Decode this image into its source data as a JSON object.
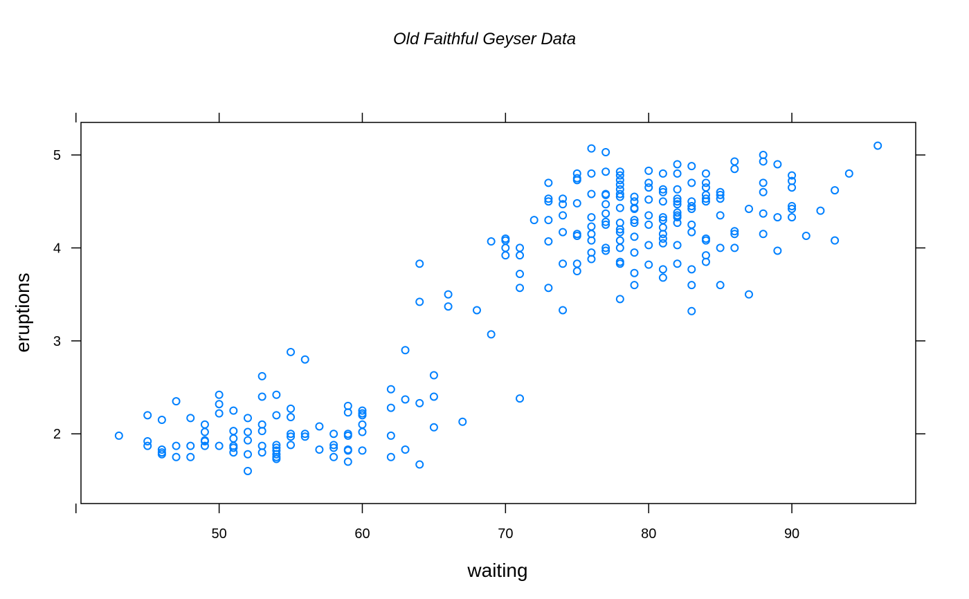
{
  "chart_data": {
    "type": "scatter",
    "title": "Old Faithful Geyser Data",
    "xlabel": "waiting",
    "ylabel": "eruptions",
    "xlim": [
      40.35,
      98.65
    ],
    "ylim": [
      1.25,
      5.35
    ],
    "xticks": [
      50,
      60,
      70,
      80,
      90
    ],
    "yticks": [
      2,
      3,
      4,
      5
    ],
    "grid": false,
    "color": "#0080ff",
    "points": [
      [
        43,
        1.98
      ],
      [
        45,
        2.2
      ],
      [
        45,
        1.92
      ],
      [
        45,
        1.87
      ],
      [
        46,
        2.15
      ],
      [
        46,
        1.83
      ],
      [
        46,
        1.8
      ],
      [
        46,
        1.78
      ],
      [
        47,
        2.35
      ],
      [
        47,
        1.87
      ],
      [
        47,
        1.75
      ],
      [
        48,
        2.17
      ],
      [
        48,
        1.87
      ],
      [
        48,
        1.75
      ],
      [
        49,
        2.1
      ],
      [
        49,
        2.02
      ],
      [
        49,
        1.93
      ],
      [
        49,
        1.92
      ],
      [
        49,
        1.87
      ],
      [
        50,
        2.42
      ],
      [
        50,
        2.32
      ],
      [
        50,
        2.22
      ],
      [
        50,
        1.87
      ],
      [
        51,
        2.25
      ],
      [
        51,
        2.03
      ],
      [
        51,
        1.95
      ],
      [
        51,
        1.87
      ],
      [
        51,
        1.85
      ],
      [
        51,
        1.8
      ],
      [
        52,
        2.17
      ],
      [
        52,
        2.02
      ],
      [
        52,
        1.93
      ],
      [
        52,
        1.78
      ],
      [
        52,
        1.6
      ],
      [
        53,
        2.62
      ],
      [
        53,
        2.4
      ],
      [
        53,
        2.1
      ],
      [
        53,
        2.03
      ],
      [
        53,
        1.87
      ],
      [
        53,
        1.8
      ],
      [
        54,
        2.42
      ],
      [
        54,
        2.2
      ],
      [
        54,
        1.88
      ],
      [
        54,
        1.85
      ],
      [
        54,
        1.82
      ],
      [
        54,
        1.78
      ],
      [
        54,
        1.75
      ],
      [
        54,
        1.73
      ],
      [
        55,
        2.88
      ],
      [
        55,
        2.27
      ],
      [
        55,
        2.18
      ],
      [
        55,
        2.0
      ],
      [
        55,
        1.97
      ],
      [
        55,
        1.88
      ],
      [
        56,
        2.8
      ],
      [
        56,
        2.0
      ],
      [
        56,
        1.97
      ],
      [
        57,
        2.08
      ],
      [
        57,
        1.83
      ],
      [
        58,
        2.0
      ],
      [
        58,
        1.88
      ],
      [
        58,
        1.85
      ],
      [
        58,
        1.75
      ],
      [
        59,
        2.3
      ],
      [
        59,
        2.23
      ],
      [
        59,
        2.0
      ],
      [
        59,
        1.98
      ],
      [
        59,
        1.83
      ],
      [
        59,
        1.82
      ],
      [
        59,
        1.7
      ],
      [
        60,
        2.25
      ],
      [
        60,
        2.22
      ],
      [
        60,
        2.2
      ],
      [
        60,
        2.1
      ],
      [
        60,
        2.02
      ],
      [
        60,
        1.82
      ],
      [
        62,
        2.48
      ],
      [
        62,
        2.28
      ],
      [
        62,
        1.98
      ],
      [
        62,
        1.75
      ],
      [
        63,
        2.9
      ],
      [
        63,
        2.37
      ],
      [
        63,
        1.83
      ],
      [
        64,
        3.83
      ],
      [
        64,
        3.42
      ],
      [
        64,
        2.33
      ],
      [
        64,
        1.67
      ],
      [
        65,
        2.63
      ],
      [
        65,
        2.4
      ],
      [
        65,
        2.07
      ],
      [
        66,
        3.5
      ],
      [
        66,
        3.37
      ],
      [
        67,
        2.13
      ],
      [
        68,
        3.33
      ],
      [
        69,
        4.07
      ],
      [
        69,
        3.07
      ],
      [
        70,
        4.1
      ],
      [
        70,
        4.08
      ],
      [
        70,
        4.0
      ],
      [
        70,
        3.92
      ],
      [
        71,
        4.0
      ],
      [
        71,
        3.92
      ],
      [
        71,
        3.72
      ],
      [
        71,
        3.57
      ],
      [
        71,
        2.38
      ],
      [
        72,
        4.3
      ],
      [
        73,
        4.7
      ],
      [
        73,
        4.53
      ],
      [
        73,
        4.5
      ],
      [
        73,
        4.3
      ],
      [
        73,
        4.07
      ],
      [
        73,
        3.57
      ],
      [
        74,
        4.53
      ],
      [
        74,
        4.47
      ],
      [
        74,
        4.35
      ],
      [
        74,
        4.17
      ],
      [
        74,
        3.83
      ],
      [
        74,
        3.33
      ],
      [
        75,
        4.8
      ],
      [
        75,
        4.75
      ],
      [
        75,
        4.73
      ],
      [
        75,
        4.48
      ],
      [
        75,
        4.15
      ],
      [
        75,
        4.13
      ],
      [
        75,
        3.83
      ],
      [
        75,
        3.75
      ],
      [
        76,
        5.07
      ],
      [
        76,
        4.8
      ],
      [
        76,
        4.58
      ],
      [
        76,
        4.33
      ],
      [
        76,
        4.23
      ],
      [
        76,
        4.15
      ],
      [
        76,
        4.08
      ],
      [
        76,
        3.95
      ],
      [
        76,
        3.88
      ],
      [
        77,
        5.03
      ],
      [
        77,
        4.82
      ],
      [
        77,
        4.58
      ],
      [
        77,
        4.57
      ],
      [
        77,
        4.47
      ],
      [
        77,
        4.37
      ],
      [
        77,
        4.28
      ],
      [
        77,
        4.25
      ],
      [
        77,
        4.0
      ],
      [
        77,
        3.97
      ],
      [
        78,
        4.82
      ],
      [
        78,
        4.78
      ],
      [
        78,
        4.73
      ],
      [
        78,
        4.68
      ],
      [
        78,
        4.63
      ],
      [
        78,
        4.58
      ],
      [
        78,
        4.55
      ],
      [
        78,
        4.43
      ],
      [
        78,
        4.27
      ],
      [
        78,
        4.2
      ],
      [
        78,
        4.17
      ],
      [
        78,
        4.08
      ],
      [
        78,
        4.0
      ],
      [
        78,
        3.85
      ],
      [
        78,
        3.83
      ],
      [
        78,
        3.45
      ],
      [
        79,
        4.55
      ],
      [
        79,
        4.5
      ],
      [
        79,
        4.43
      ],
      [
        79,
        4.42
      ],
      [
        79,
        4.3
      ],
      [
        79,
        4.27
      ],
      [
        79,
        4.12
      ],
      [
        79,
        3.95
      ],
      [
        79,
        3.73
      ],
      [
        79,
        3.6
      ],
      [
        80,
        4.83
      ],
      [
        80,
        4.7
      ],
      [
        80,
        4.65
      ],
      [
        80,
        4.52
      ],
      [
        80,
        4.35
      ],
      [
        80,
        4.25
      ],
      [
        80,
        4.03
      ],
      [
        80,
        3.82
      ],
      [
        81,
        4.8
      ],
      [
        81,
        4.63
      ],
      [
        81,
        4.6
      ],
      [
        81,
        4.5
      ],
      [
        81,
        4.33
      ],
      [
        81,
        4.3
      ],
      [
        81,
        4.22
      ],
      [
        81,
        4.15
      ],
      [
        81,
        4.1
      ],
      [
        81,
        4.05
      ],
      [
        81,
        3.77
      ],
      [
        81,
        3.68
      ],
      [
        82,
        4.9
      ],
      [
        82,
        4.8
      ],
      [
        82,
        4.63
      ],
      [
        82,
        4.53
      ],
      [
        82,
        4.5
      ],
      [
        82,
        4.47
      ],
      [
        82,
        4.38
      ],
      [
        82,
        4.35
      ],
      [
        82,
        4.33
      ],
      [
        82,
        4.27
      ],
      [
        82,
        4.03
      ],
      [
        82,
        3.83
      ],
      [
        83,
        4.88
      ],
      [
        83,
        4.7
      ],
      [
        83,
        4.5
      ],
      [
        83,
        4.45
      ],
      [
        83,
        4.42
      ],
      [
        83,
        4.25
      ],
      [
        83,
        4.17
      ],
      [
        83,
        3.77
      ],
      [
        83,
        3.6
      ],
      [
        83,
        3.32
      ],
      [
        84,
        4.8
      ],
      [
        84,
        4.7
      ],
      [
        84,
        4.65
      ],
      [
        84,
        4.57
      ],
      [
        84,
        4.53
      ],
      [
        84,
        4.5
      ],
      [
        84,
        4.1
      ],
      [
        84,
        4.08
      ],
      [
        84,
        3.92
      ],
      [
        84,
        3.85
      ],
      [
        85,
        4.6
      ],
      [
        85,
        4.57
      ],
      [
        85,
        4.53
      ],
      [
        85,
        4.35
      ],
      [
        85,
        4.0
      ],
      [
        85,
        3.6
      ],
      [
        86,
        4.93
      ],
      [
        86,
        4.85
      ],
      [
        86,
        4.18
      ],
      [
        86,
        4.15
      ],
      [
        86,
        4.0
      ],
      [
        87,
        4.42
      ],
      [
        87,
        3.5
      ],
      [
        88,
        5.0
      ],
      [
        88,
        4.93
      ],
      [
        88,
        4.7
      ],
      [
        88,
        4.6
      ],
      [
        88,
        4.37
      ],
      [
        88,
        4.15
      ],
      [
        89,
        4.9
      ],
      [
        89,
        4.33
      ],
      [
        89,
        3.97
      ],
      [
        90,
        4.78
      ],
      [
        90,
        4.72
      ],
      [
        90,
        4.65
      ],
      [
        90,
        4.45
      ],
      [
        90,
        4.42
      ],
      [
        90,
        4.33
      ],
      [
        91,
        4.13
      ],
      [
        92,
        4.4
      ],
      [
        93,
        4.62
      ],
      [
        93,
        4.08
      ],
      [
        94,
        4.8
      ],
      [
        96,
        5.1
      ]
    ]
  }
}
